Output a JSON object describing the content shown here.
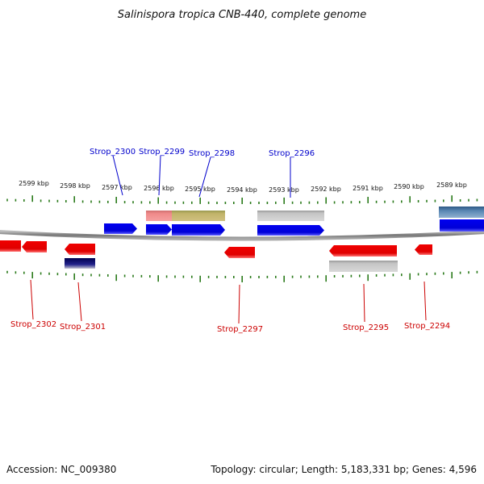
{
  "title": "Salinispora tropica CNB-440, complete genome",
  "footer": {
    "accession": "Accession: NC_009380",
    "summary": "Topology: circular; Length: 5,183,331 bp; Genes: 4,596"
  },
  "ruler_labels": [
    "2599 kbp",
    "2598 kbp",
    "2597 kbp",
    "2596 kbp",
    "2595 kbp",
    "2594 kbp",
    "2593 kbp",
    "2592 kbp",
    "2591 kbp",
    "2590 kbp",
    "2589 kbp"
  ],
  "colors": {
    "forward_gene": "#0000e6",
    "reverse_gene": "#e60000",
    "backbone": "#777777",
    "ruler": "#2a7a1a",
    "forward_label": "#0000cc",
    "reverse_label": "#cc0000"
  },
  "forward_labels": [
    "Strop_2300",
    "Strop_2299",
    "Strop_2298",
    "Strop_2296"
  ],
  "reverse_labels": [
    "Strop_2302",
    "Strop_2301",
    "Strop_2297",
    "Strop_2295",
    "Strop_2294"
  ]
}
